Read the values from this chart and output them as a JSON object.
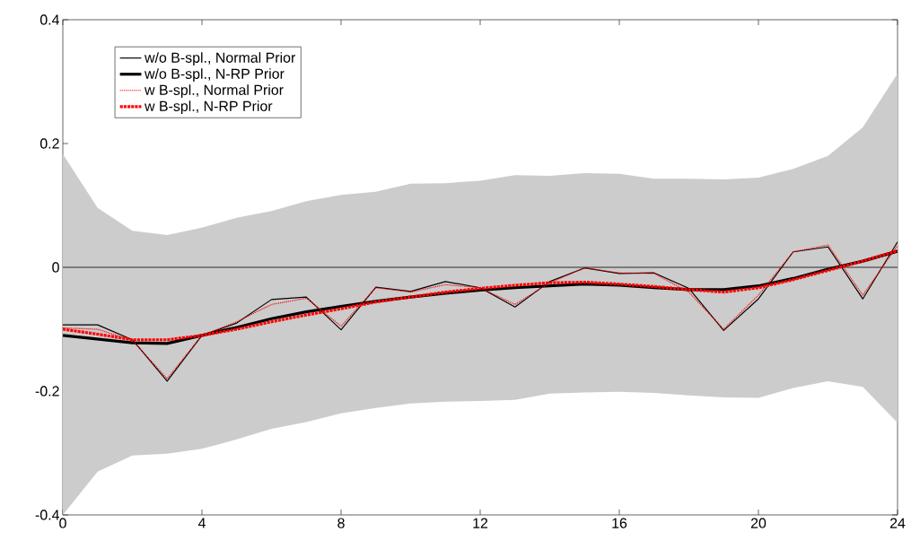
{
  "chart_data": {
    "type": "line",
    "x": [
      0,
      1,
      2,
      3,
      4,
      5,
      6,
      7,
      8,
      9,
      10,
      11,
      12,
      13,
      14,
      15,
      16,
      17,
      18,
      19,
      20,
      21,
      22,
      23,
      24
    ],
    "series": [
      {
        "name": "w/o B-spl., Normal Prior",
        "color": "#000000",
        "line_style": "solid",
        "values": [
          -0.093,
          -0.093,
          -0.117,
          -0.184,
          -0.11,
          -0.09,
          -0.052,
          -0.048,
          -0.101,
          -0.032,
          -0.039,
          -0.023,
          -0.033,
          -0.064,
          -0.023,
          -0.001,
          -0.01,
          -0.009,
          -0.034,
          -0.102,
          -0.051,
          0.025,
          0.033,
          -0.051,
          0.041
        ],
        "lower": [
          -0.4,
          -0.33,
          -0.304,
          -0.301,
          -0.293,
          -0.278,
          -0.261,
          -0.25,
          -0.236,
          -0.227,
          -0.22,
          -0.217,
          -0.216,
          -0.214,
          -0.204,
          -0.202,
          -0.201,
          -0.203,
          -0.207,
          -0.21,
          -0.211,
          -0.195,
          -0.184,
          -0.193,
          -0.251
        ],
        "upper": [
          0.183,
          0.096,
          0.059,
          0.052,
          0.064,
          0.08,
          0.091,
          0.107,
          0.117,
          0.122,
          0.135,
          0.136,
          0.14,
          0.149,
          0.148,
          0.152,
          0.151,
          0.143,
          0.143,
          0.142,
          0.145,
          0.159,
          0.18,
          0.226,
          0.313
        ]
      },
      {
        "name": "w/o B-spl., N-RP Prior",
        "color": "#000000",
        "line_style": "solid",
        "values": [
          -0.11,
          -0.116,
          -0.122,
          -0.123,
          -0.11,
          -0.097,
          -0.083,
          -0.072,
          -0.063,
          -0.055,
          -0.048,
          -0.042,
          -0.037,
          -0.033,
          -0.03,
          -0.027,
          -0.029,
          -0.033,
          -0.036,
          -0.036,
          -0.03,
          -0.018,
          -0.003,
          0.01,
          0.026
        ]
      },
      {
        "name": "w B-spl., Normal Prior",
        "color": "#ff0000",
        "line_style": "dotted",
        "values": [
          -0.098,
          -0.1,
          -0.118,
          -0.18,
          -0.11,
          -0.088,
          -0.06,
          -0.05,
          -0.095,
          -0.033,
          -0.04,
          -0.028,
          -0.033,
          -0.06,
          -0.025,
          -0.001,
          -0.009,
          -0.01,
          -0.04,
          -0.1,
          -0.045,
          0.025,
          0.036,
          -0.045,
          0.035
        ]
      },
      {
        "name": "w B-spl., N-RP Prior",
        "color": "#ff0000",
        "line_style": "dotted",
        "values": [
          -0.1,
          -0.108,
          -0.117,
          -0.117,
          -0.11,
          -0.1,
          -0.088,
          -0.077,
          -0.067,
          -0.056,
          -0.048,
          -0.04,
          -0.034,
          -0.029,
          -0.025,
          -0.024,
          -0.027,
          -0.031,
          -0.036,
          -0.04,
          -0.033,
          -0.02,
          -0.005,
          0.01,
          0.027
        ]
      }
    ],
    "xlim": [
      0,
      24
    ],
    "xticks": [
      0,
      4,
      8,
      12,
      16,
      20,
      24
    ],
    "ylim": [
      -0.4,
      0.4
    ],
    "yticks": [
      {
        "value": -0.4,
        "label": "-0.4"
      },
      {
        "value": -0.2,
        "label": "-0.2"
      },
      0,
      {
        "value": 0.2,
        "label": "0.2"
      },
      {
        "value": 0.4,
        "label": "0.4"
      }
    ],
    "ref_lines": [
      {
        "axis": "y",
        "value": 0,
        "color": "#000000",
        "line_style": "solid"
      }
    ],
    "legend": "top left",
    "grid": false,
    "marker": "none"
  }
}
